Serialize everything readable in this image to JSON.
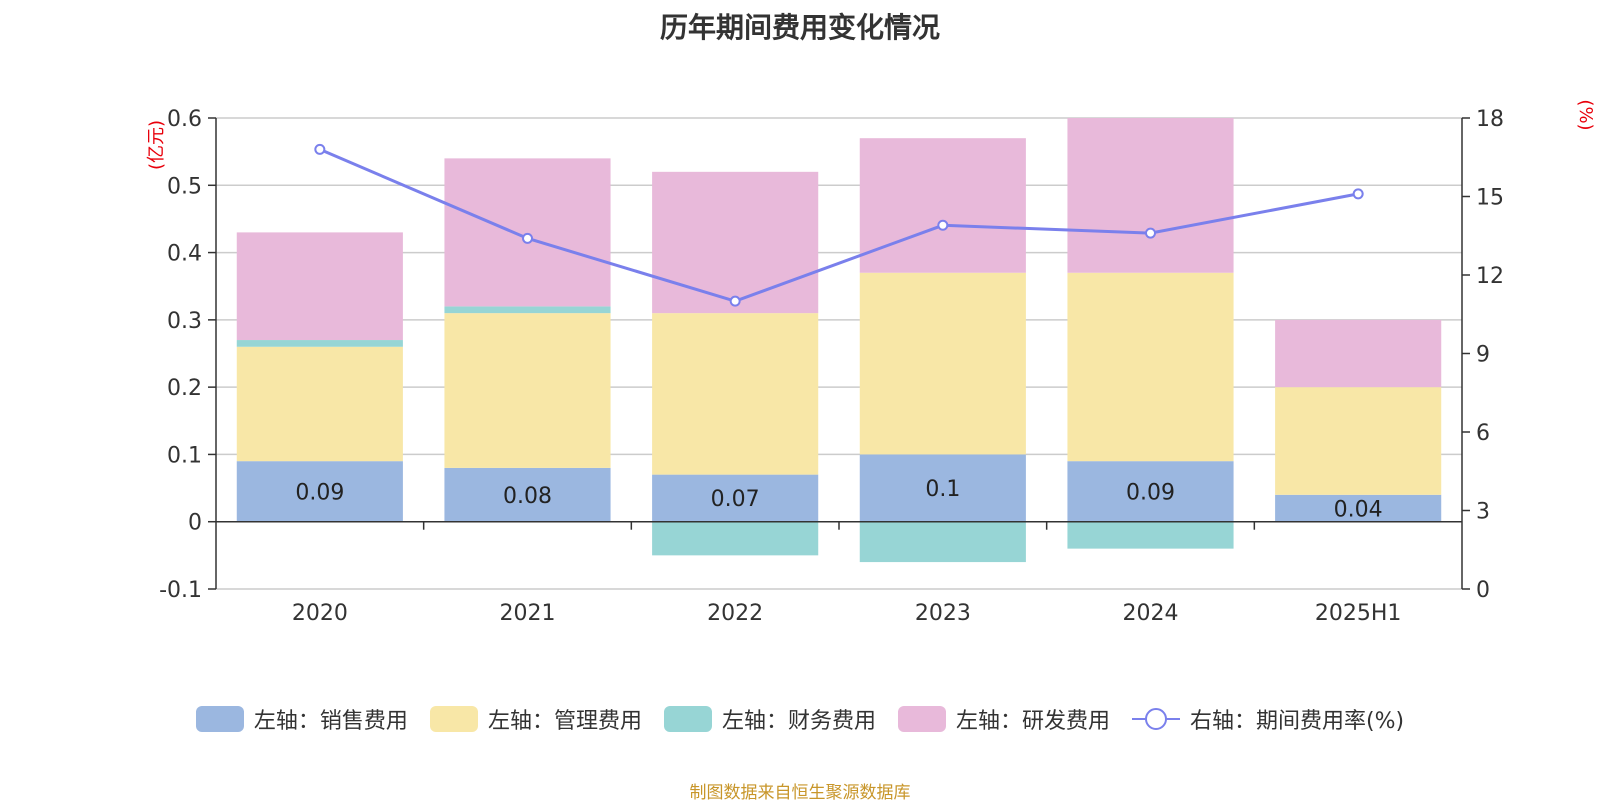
{
  "chart_data": {
    "type": "bar",
    "title": "历年期间费用变化情况",
    "categories": [
      "2020",
      "2021",
      "2022",
      "2023",
      "2024",
      "2025H1"
    ],
    "series": [
      {
        "name": "左轴：销售费用",
        "axis": "left",
        "values": [
          0.09,
          0.08,
          0.07,
          0.1,
          0.09,
          0.04
        ],
        "color": "#9bb7e0",
        "data_labels": [
          "0.09",
          "0.08",
          "0.07",
          "0.1",
          "0.09",
          "0.04"
        ]
      },
      {
        "name": "左轴：管理费用",
        "axis": "left",
        "values": [
          0.17,
          0.23,
          0.24,
          0.27,
          0.28,
          0.16
        ],
        "color": "#f8e7a7"
      },
      {
        "name": "左轴：财务费用",
        "axis": "left",
        "values": [
          0.01,
          0.01,
          -0.05,
          -0.06,
          -0.04,
          0.0
        ],
        "color": "#97d5d5"
      },
      {
        "name": "左轴：研发费用",
        "axis": "left",
        "values": [
          0.16,
          0.22,
          0.21,
          0.2,
          0.23,
          0.1
        ],
        "color": "#e8b9da"
      },
      {
        "name": "右轴：期间费用率(%)",
        "axis": "right",
        "type": "line",
        "values": [
          16.8,
          13.4,
          11.0,
          13.9,
          13.6,
          15.1
        ],
        "color": "#7a80ec"
      }
    ],
    "y_left": {
      "unit": "(亿元)",
      "ylim": [
        -0.1,
        0.6
      ],
      "ticks": [
        "-0.1",
        "0",
        "0.1",
        "0.2",
        "0.3",
        "0.4",
        "0.5",
        "0.6"
      ]
    },
    "y_right": {
      "unit": "(%)",
      "ylim": [
        0,
        18
      ],
      "ticks": [
        "0",
        "3",
        "6",
        "9",
        "12",
        "15",
        "18"
      ]
    },
    "grid": true,
    "legend_position": "bottom"
  },
  "source": "制图数据来自恒生聚源数据库"
}
